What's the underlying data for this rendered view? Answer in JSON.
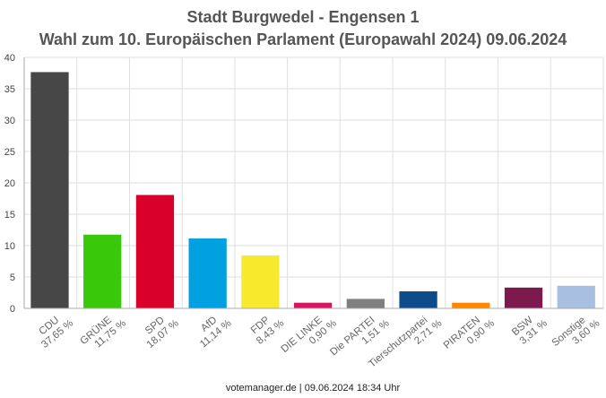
{
  "chart_data": {
    "type": "bar",
    "title": "Stadt Burgwedel - Engensen 1",
    "subtitle": "Wahl zum 10. Europäischen Parlament (Europawahl 2024) 09.06.2024",
    "xlabel": "",
    "ylabel": "",
    "ylim": [
      0,
      40
    ],
    "yticks": [
      "0",
      "5",
      "10",
      "15",
      "20",
      "25",
      "30",
      "35",
      "40"
    ],
    "grid": true,
    "categories": [
      "CDU",
      "GRÜNE",
      "SPD",
      "AfD",
      "FDP",
      "DIE LINKE",
      "Die PARTEI",
      "Tierschutzpartei",
      "PIRATEN",
      "BSW",
      "Sonstige"
    ],
    "values": [
      37.65,
      11.75,
      18.07,
      11.14,
      8.43,
      0.9,
      1.51,
      2.71,
      0.9,
      3.31,
      3.6
    ],
    "value_labels": [
      "37,65 %",
      "11,75 %",
      "18,07 %",
      "11,14 %",
      "8,43 %",
      "0,90 %",
      "1,51 %",
      "2,71 %",
      "0,90 %",
      "3,31 %",
      "3,60 %"
    ],
    "colors": [
      "#474747",
      "#3ac90a",
      "#d9002b",
      "#00a0e1",
      "#f7ea2c",
      "#d6165e",
      "#7f7f7f",
      "#0e4b8a",
      "#ff8800",
      "#7c1a4d",
      "#a9bfe2"
    ]
  },
  "footer": "votemanager.de | 09.06.2024 18:34 Uhr"
}
